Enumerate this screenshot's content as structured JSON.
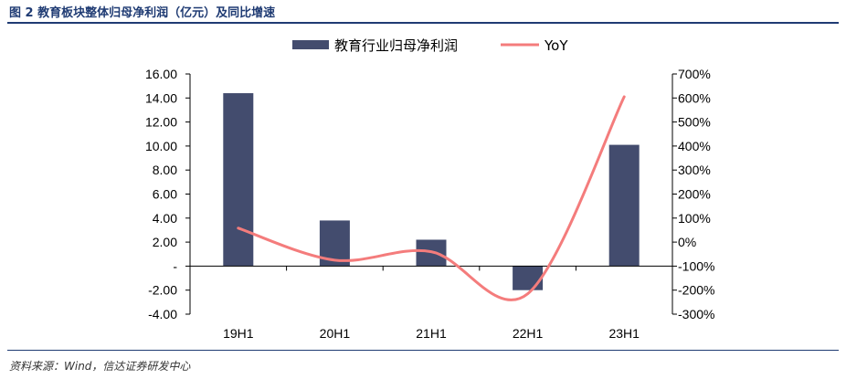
{
  "figure_title": "图 2 教育板块整体归母净利润（亿元）及同比增速",
  "source": "资料来源：Wind，信达证券研发中心",
  "colors": {
    "bar": "#434c6e",
    "line": "#f47c7c",
    "rule": "#1f3b73"
  },
  "chart_data": {
    "type": "bar",
    "categories": [
      "19H1",
      "20H1",
      "21H1",
      "22H1",
      "23H1"
    ],
    "series": [
      {
        "name": "教育行业归母净利润",
        "type": "bar",
        "axis": "left",
        "values": [
          14.4,
          3.8,
          2.2,
          -2.0,
          10.1
        ]
      },
      {
        "name": "YoY",
        "type": "line",
        "axis": "right",
        "values": [
          58,
          -75,
          -40,
          -215,
          605
        ]
      }
    ],
    "left_axis": {
      "ylim": [
        -4,
        16
      ],
      "ticks": [
        "-4.00",
        "-2.00",
        "-",
        "2.00",
        "4.00",
        "6.00",
        "8.00",
        "10.00",
        "12.00",
        "14.00",
        "16.00"
      ]
    },
    "right_axis": {
      "ylim": [
        -300,
        700
      ],
      "ticks": [
        "-300%",
        "-200%",
        "-100%",
        "0%",
        "100%",
        "200%",
        "300%",
        "400%",
        "500%",
        "600%",
        "700%"
      ]
    },
    "legend_position": "top-center",
    "grid": false
  }
}
